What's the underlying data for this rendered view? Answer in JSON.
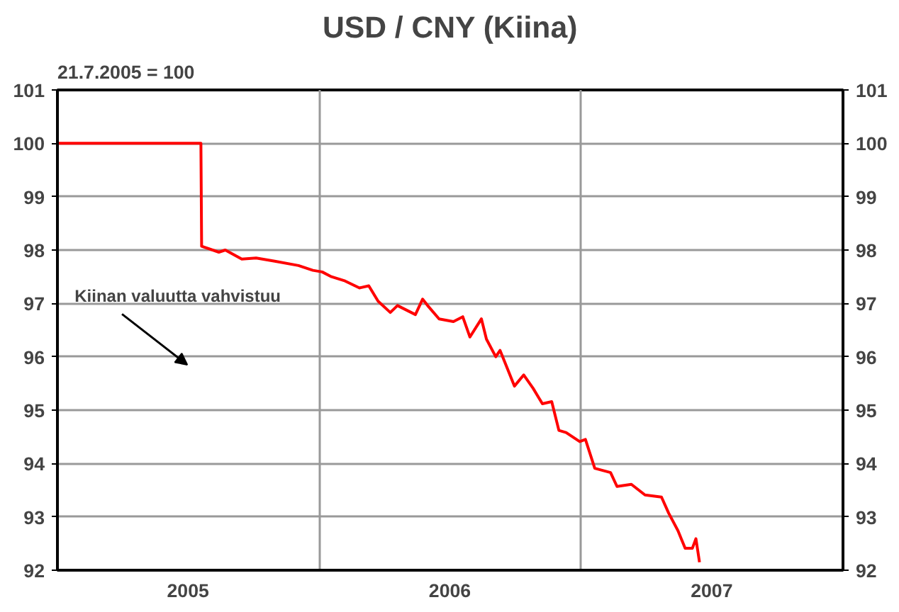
{
  "chart_data": {
    "type": "line",
    "title": "USD / CNY (Kiina)",
    "subtitle": "21.7.2005 = 100",
    "annotations": [
      "Kiinan valuutta vahvistuu"
    ],
    "x": [
      "2005-01-01",
      "2005-07-20",
      "2005-07-21",
      "2005-08-14",
      "2005-08-23",
      "2005-09-15",
      "2005-10-05",
      "2005-10-31",
      "2005-12-03",
      "2005-12-23",
      "2006-01-05",
      "2006-01-18",
      "2006-02-06",
      "2006-02-26",
      "2006-03-11",
      "2006-03-24",
      "2006-04-10",
      "2006-04-20",
      "2006-05-15",
      "2006-05-25",
      "2006-06-01",
      "2006-06-17",
      "2006-07-07",
      "2006-07-20",
      "2006-07-30",
      "2006-08-15",
      "2006-08-22",
      "2006-09-04",
      "2006-09-10",
      "2006-09-30",
      "2006-10-13",
      "2006-10-26",
      "2006-11-08",
      "2006-11-21",
      "2006-12-01",
      "2006-12-11",
      "2006-12-30",
      "2007-01-07",
      "2007-01-20",
      "2007-02-11",
      "2007-02-20",
      "2007-03-12",
      "2007-03-31",
      "2007-04-23",
      "2007-05-03",
      "2007-05-16",
      "2007-05-26",
      "2007-06-05",
      "2007-06-10",
      "2007-06-15"
    ],
    "series": [
      {
        "color": "#ff0000",
        "values": [
          100,
          100,
          98.07,
          97.96,
          98.0,
          97.83,
          97.85,
          97.79,
          97.71,
          97.62,
          97.59,
          97.5,
          97.42,
          97.29,
          97.33,
          97.04,
          96.83,
          96.96,
          96.79,
          97.08,
          96.96,
          96.71,
          96.66,
          96.75,
          96.37,
          96.71,
          96.33,
          96.0,
          96.12,
          95.45,
          95.66,
          95.41,
          95.12,
          95.16,
          94.62,
          94.58,
          94.41,
          94.45,
          93.91,
          93.83,
          93.57,
          93.61,
          93.41,
          93.37,
          93.07,
          92.74,
          92.41,
          92.41,
          92.59,
          92.15
        ]
      }
    ],
    "xlim": [
      "2005-01-01",
      "2008-01-01"
    ],
    "xticks": [
      {
        "value": "2006-01-01",
        "label": null
      },
      {
        "value": "2007-01-01",
        "label": null
      },
      {
        "value": "2005-07-02",
        "label": "2005"
      },
      {
        "value": "2006-07-02",
        "label": "2006"
      },
      {
        "value": "2007-07-02",
        "label": "2007"
      }
    ],
    "ylim": [
      92,
      101
    ],
    "yticks": [
      92,
      93,
      94,
      95,
      96,
      97,
      98,
      99,
      100,
      101
    ],
    "y2lim": [
      92,
      101
    ],
    "y2ticks": [
      92,
      93,
      94,
      95,
      96,
      97,
      98,
      99,
      100,
      101
    ],
    "grid": true,
    "marker": "none",
    "line_style": "solid"
  }
}
